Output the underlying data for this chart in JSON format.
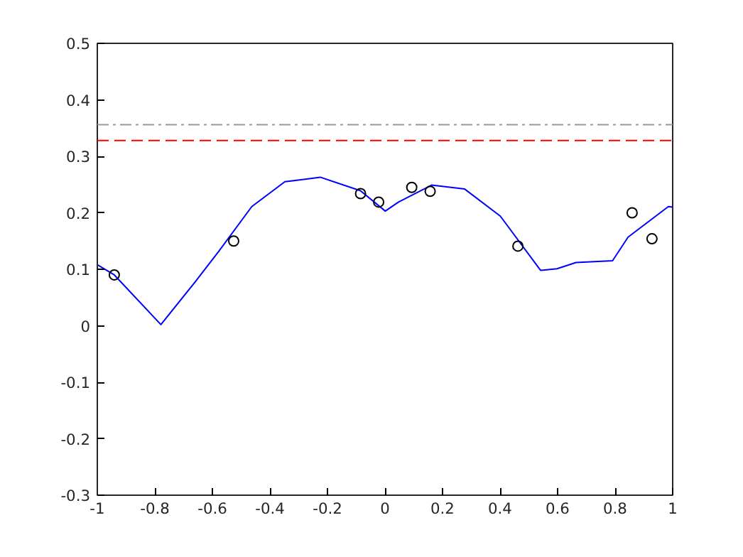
{
  "chart_data": {
    "type": "line",
    "xlim": [
      -1,
      1
    ],
    "ylim": [
      -0.3,
      0.5
    ],
    "xticks": [
      -1,
      -0.8,
      -0.6,
      -0.4,
      -0.2,
      0,
      0.2,
      0.4,
      0.6,
      0.8,
      1
    ],
    "yticks": [
      -0.3,
      -0.2,
      -0.1,
      0,
      0.1,
      0.2,
      0.3,
      0.4,
      0.5
    ],
    "grid": false,
    "series": [
      {
        "color": "#0000ff",
        "line_style": "solid",
        "x": [
          -1,
          -0.941,
          -0.779,
          -0.661,
          -0.579,
          -0.463,
          -0.348,
          -0.282,
          -0.225,
          -0.085,
          0.001,
          0.047,
          0.162,
          0.277,
          0.401,
          0.541,
          0.598,
          0.664,
          0.791,
          0.845,
          0.985,
          1
        ],
        "values": [
          0.108,
          0.09,
          0.002,
          0.077,
          0.131,
          0.211,
          0.255,
          0.259,
          0.263,
          0.239,
          0.203,
          0.219,
          0.249,
          0.242,
          0.194,
          0.098,
          0.101,
          0.112,
          0.115,
          0.157,
          0.211,
          0.21
        ]
      },
      {
        "type": "scatter",
        "color": "#000000",
        "marker": "circle",
        "x": [
          -0.941,
          -0.526,
          -0.085,
          -0.022,
          0.093,
          0.157,
          0.462,
          0.859,
          0.928
        ],
        "values": [
          0.09,
          0.15,
          0.234,
          0.219,
          0.245,
          0.238,
          0.141,
          0.2,
          0.154
        ]
      }
    ],
    "ref_lines": [
      {
        "axis": "y",
        "value": 0.328,
        "color": "#ff0000",
        "line_style": "dashed"
      },
      {
        "axis": "y",
        "value": 0.356,
        "color": "#999999",
        "line_style": "dashdot"
      }
    ]
  }
}
